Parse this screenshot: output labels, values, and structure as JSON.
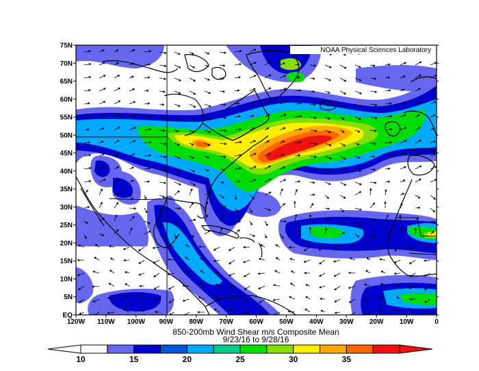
{
  "credit": "NOAA Physical Sciences Laboratory",
  "title_line1": "850-200mb Wind Shear m/s Composite Mean",
  "title_line2": "9/23/16  to 9/28/16",
  "lat_labels": [
    "EQ",
    "5N",
    "10N",
    "15N",
    "20N",
    "25N",
    "30N",
    "35N",
    "40N",
    "45N",
    "50N",
    "55N",
    "60N",
    "65N",
    "70N",
    "75N"
  ],
  "lon_labels": [
    "120W",
    "110W",
    "100W",
    "90W",
    "80W",
    "70W",
    "60W",
    "50W",
    "40W",
    "30W",
    "20W",
    "10W",
    "0"
  ],
  "colorbar": {
    "colors": [
      "#ffffff",
      "#6666ee",
      "#0000cc",
      "#0055dd",
      "#00aaff",
      "#00cc88",
      "#00dd00",
      "#88dd00",
      "#ffee00",
      "#ffaa00",
      "#ff6600",
      "#ee1111"
    ],
    "labels": [
      "10",
      "15",
      "20",
      "25",
      "30",
      "35"
    ]
  },
  "palette": {
    "land_line": "#000000",
    "arrow": "#000000"
  }
}
